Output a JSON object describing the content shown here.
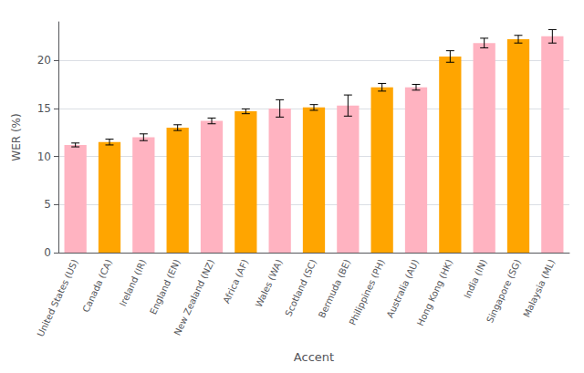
{
  "chart_data": {
    "type": "bar",
    "categories": [
      "United States (US)",
      "Canada (CA)",
      "Ireland (IR)",
      "England (EN)",
      "New Zealand (NZ)",
      "Africa (AF)",
      "Wales (WA)",
      "Scotland (SC)",
      "Bermuda (BE)",
      "Philippines (PH)",
      "Australia (AU)",
      "Hong Kong (HK)",
      "India (IN)",
      "Singapore (SG)",
      "Malaysia (ML)"
    ],
    "values": [
      11.2,
      11.5,
      12.0,
      13.0,
      13.7,
      14.7,
      15.0,
      15.1,
      15.3,
      17.2,
      17.2,
      20.4,
      21.8,
      22.2,
      22.5
    ],
    "errors": [
      0.2,
      0.3,
      0.35,
      0.3,
      0.3,
      0.25,
      0.9,
      0.3,
      1.1,
      0.4,
      0.3,
      0.6,
      0.5,
      0.4,
      0.7
    ],
    "colors": [
      "#FFB3C1",
      "#FFA500",
      "#FFB3C1",
      "#FFA500",
      "#FFB3C1",
      "#FFA500",
      "#FFB3C1",
      "#FFA500",
      "#FFB3C1",
      "#FFA500",
      "#FFB3C1",
      "#FFA500",
      "#FFB3C1",
      "#FFA500",
      "#FFB3C1"
    ],
    "xlabel": "Accent",
    "ylabel": "WER (%)",
    "ylim": [
      0,
      24
    ],
    "yticks": [
      0,
      5,
      10,
      15,
      20
    ],
    "grid": true
  }
}
